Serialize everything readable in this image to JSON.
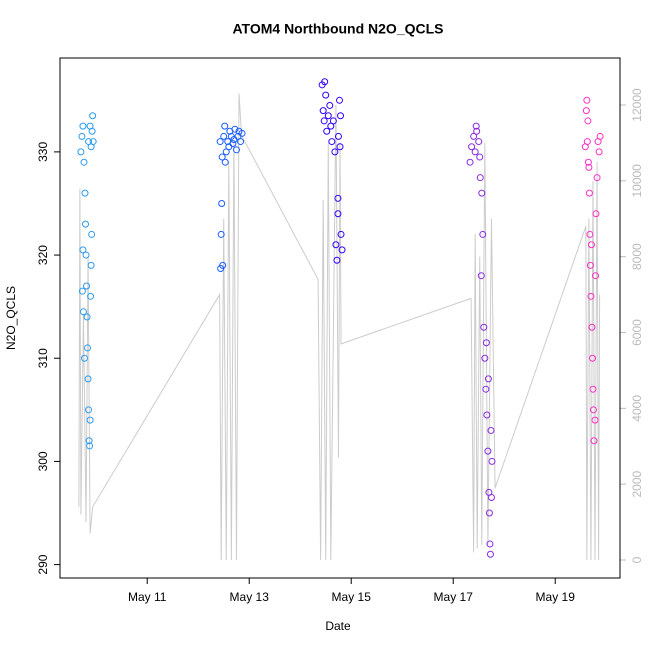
{
  "chart_data": {
    "type": "scatter",
    "title": "ATOM4 Northbound N2O_QCLS",
    "x_label": "Date",
    "y_label": "N2O_QCLS",
    "xlim": [
      9.29,
      20.27
    ],
    "xticks": [
      {
        "value": 11,
        "label": "May 11"
      },
      {
        "value": 13,
        "label": "May 13"
      },
      {
        "value": 15,
        "label": "May 15"
      },
      {
        "value": 17,
        "label": "May 17"
      },
      {
        "value": 19,
        "label": "May 19"
      }
    ],
    "ylim": [
      288.7,
      339.1
    ],
    "yticks": [
      290,
      300,
      310,
      320,
      330
    ],
    "y2lim": [
      -475,
      13240
    ],
    "y2ticks": [
      0,
      2000,
      4000,
      6000,
      8000,
      10000,
      12000
    ],
    "y2_color": "#bbbbbb",
    "series": [
      {
        "color": "#2b9bf0",
        "mode": "points",
        "x": [
          9.7,
          9.72,
          9.74,
          9.76,
          9.78,
          9.79,
          9.8,
          9.81,
          9.82,
          9.83,
          9.84,
          9.85,
          9.86,
          9.87,
          9.88,
          9.89,
          9.9,
          9.91,
          9.92,
          9.93,
          9.94,
          9.73,
          9.75,
          9.77,
          9.74,
          9.85,
          9.88,
          9.9
        ],
        "values": [
          330,
          331.5,
          332.5,
          329,
          326,
          323,
          320,
          317,
          314,
          311,
          308,
          305,
          302,
          301.5,
          304,
          316,
          319,
          322,
          332,
          333.5,
          331,
          316.5,
          314.5,
          310,
          320.5,
          331,
          332.5,
          330.5
        ]
      },
      {
        "color": "#1a5cff",
        "mode": "points",
        "x": [
          12.43,
          12.45,
          12.46,
          12.48,
          12.5,
          12.52,
          12.55,
          12.58,
          12.6,
          12.62,
          12.65,
          12.68,
          12.7,
          12.72,
          12.75,
          12.78,
          12.8,
          12.83,
          12.86,
          12.47,
          12.44,
          12.53
        ],
        "values": [
          331,
          322,
          325,
          319,
          331.5,
          332.5,
          330,
          331,
          330.5,
          332,
          331.5,
          330.8,
          331.2,
          332.2,
          330.2,
          331.5,
          332,
          331,
          331.8,
          329.5,
          318.7,
          329
        ]
      },
      {
        "color": "#3300ff",
        "mode": "points",
        "x": [
          14.43,
          14.45,
          14.47,
          14.5,
          14.52,
          14.55,
          14.58,
          14.6,
          14.62,
          14.65,
          14.68,
          14.7,
          14.72,
          14.74,
          14.75,
          14.77,
          14.79,
          14.8,
          14.82,
          14.48,
          14.74,
          14.78
        ],
        "values": [
          336.5,
          334,
          333,
          335.5,
          332,
          333.5,
          334.5,
          332.5,
          331,
          333,
          330,
          321,
          319.5,
          324,
          331.5,
          335,
          333.5,
          322,
          320.5,
          336.8,
          325.5,
          330.5
        ]
      },
      {
        "color": "#8a2be2",
        "mode": "points",
        "x": [
          17.33,
          17.36,
          17.4,
          17.43,
          17.46,
          17.5,
          17.53,
          17.56,
          17.58,
          17.6,
          17.62,
          17.64,
          17.66,
          17.68,
          17.7,
          17.71,
          17.72,
          17.73,
          17.74,
          17.76,
          17.55,
          17.65,
          17.69,
          17.75,
          17.45,
          17.52
        ],
        "values": [
          329,
          330.5,
          331.5,
          330,
          332,
          331,
          327.5,
          326,
          322,
          313,
          310,
          307,
          304.5,
          301,
          297,
          295,
          292,
          291,
          303,
          300,
          318,
          311.5,
          308,
          296.5,
          332.5,
          329.5
        ]
      },
      {
        "color": "#ff2fc8",
        "mode": "points",
        "x": [
          19.59,
          19.61,
          19.62,
          19.63,
          19.65,
          19.67,
          19.68,
          19.69,
          19.7,
          19.72,
          19.73,
          19.75,
          19.76,
          19.78,
          19.79,
          19.8,
          19.82,
          19.84,
          19.86,
          19.88,
          19.64,
          19.66,
          19.71,
          19.74
        ],
        "values": [
          330.5,
          334,
          335,
          331,
          329,
          326,
          322,
          319,
          316,
          313,
          310,
          305,
          302,
          304,
          318,
          324,
          327.5,
          331,
          330,
          331.5,
          333,
          328.5,
          321,
          307
        ]
      },
      {
        "color": "#cccccc",
        "mode": "line",
        "axis": "y2",
        "x": [
          9.66,
          9.68,
          9.7,
          9.75,
          9.8,
          9.84,
          9.88,
          9.93,
          12.42,
          12.45,
          12.5,
          12.55,
          12.6,
          12.65,
          12.7,
          12.75,
          12.8,
          12.85,
          14.35,
          14.4,
          14.45,
          14.5,
          14.55,
          14.6,
          14.7,
          14.75,
          14.78,
          14.8,
          17.35,
          17.4,
          17.43,
          17.47,
          17.52,
          17.56,
          17.62,
          17.68,
          17.75,
          17.82,
          19.6,
          19.62,
          19.66,
          19.7,
          19.74,
          19.78,
          19.82,
          19.85,
          19.87
        ],
        "values": [
          1400,
          9800,
          1200,
          6500,
          1000,
          8000,
          700,
          1400,
          7000,
          0,
          9000,
          0,
          10500,
          0,
          11000,
          0,
          12300,
          11200,
          7400,
          0,
          9500,
          0,
          11000,
          0,
          12000,
          2700,
          11000,
          5700,
          6900,
          200,
          8600,
          300,
          8000,
          400,
          11000,
          400,
          9000,
          1900,
          8800,
          0,
          9000,
          0,
          10000,
          0,
          10500,
          0,
          7000
        ]
      }
    ]
  }
}
